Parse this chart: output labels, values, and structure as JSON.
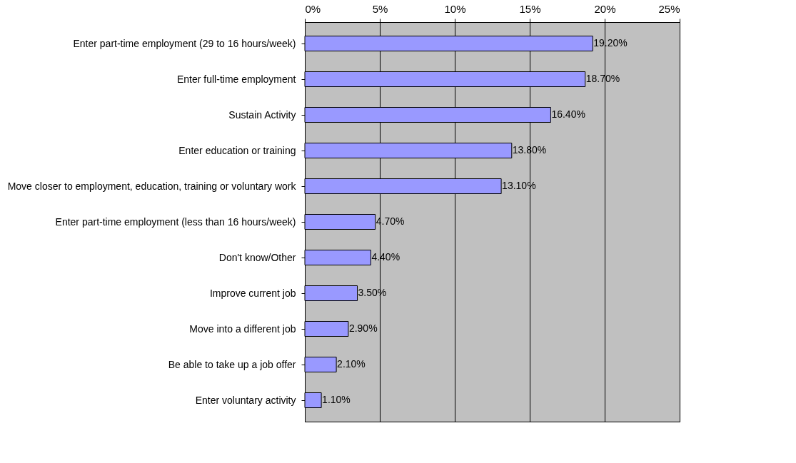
{
  "chart_data": {
    "type": "bar",
    "orientation": "horizontal",
    "categories": [
      "Enter part-time employment (29  to 16 hours/week)",
      "Enter full-time employment",
      "Sustain Activity",
      "Enter education or training",
      "Move closer to employment, education, training or voluntary work",
      "Enter part-time employment (less than 16 hours/week)",
      "Don't know/Other",
      "Improve current job",
      "Move into a different job",
      "Be able to take up a job offer",
      "Enter voluntary activity"
    ],
    "values": [
      19.2,
      18.7,
      16.4,
      13.8,
      13.1,
      4.7,
      4.4,
      3.5,
      2.9,
      2.1,
      1.1
    ],
    "value_labels": [
      "19.20%",
      "18.70%",
      "16.40%",
      "13.80%",
      "13.10%",
      "4.70%",
      "4.40%",
      "3.50%",
      "2.90%",
      "2.10%",
      "1.10%"
    ],
    "color": "#9999ff",
    "xlim": [
      0,
      25
    ],
    "xticks": [
      {
        "value": 0,
        "label": "0%"
      },
      {
        "value": 5,
        "label": "5%"
      },
      {
        "value": 10,
        "label": "10%"
      },
      {
        "value": 15,
        "label": "15%"
      },
      {
        "value": 20,
        "label": "20%"
      },
      {
        "value": 25,
        "label": "25%"
      }
    ],
    "grid": "x"
  }
}
